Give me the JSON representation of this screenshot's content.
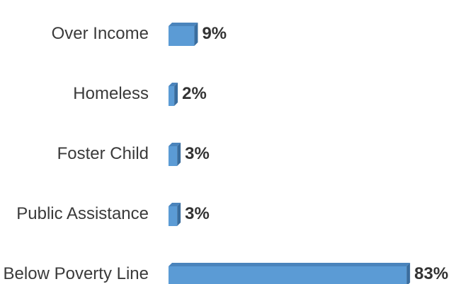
{
  "chart_data": {
    "type": "bar",
    "orientation": "horizontal",
    "style": "3d",
    "categories": [
      "Over Income",
      "Homeless",
      "Foster Child",
      "Public Assistance",
      "Below Poverty Line"
    ],
    "values": [
      9,
      2,
      3,
      3,
      83
    ],
    "value_labels": [
      "9%",
      "2%",
      "3%",
      "3%",
      "83%"
    ],
    "title": "",
    "xlabel": "",
    "ylabel": "",
    "xlim": [
      0,
      83
    ],
    "grid": false,
    "legend": "none",
    "colors": {
      "bar_front": "#5b9bd5",
      "bar_top": "#4a84bc",
      "bar_side": "#3a6d9e",
      "category_text": "#3a3a3a",
      "value_text": "#333333"
    }
  }
}
